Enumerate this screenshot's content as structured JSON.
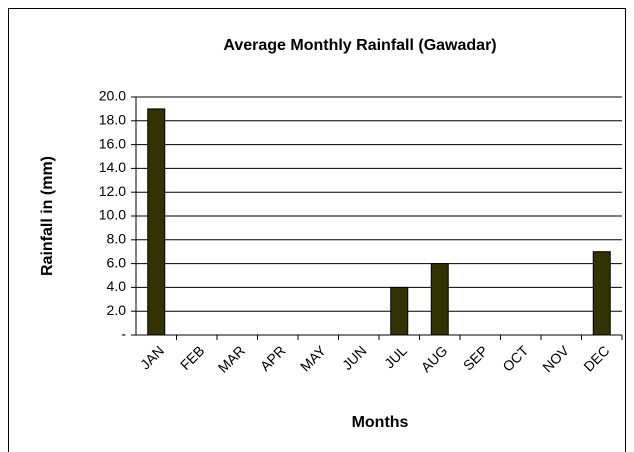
{
  "chart_data": {
    "type": "bar",
    "title": "Average Monthly Rainfall (Gawadar)",
    "x_label": "Months",
    "y_label": "Rainfall in (mm)",
    "categories": [
      "JAN",
      "FEB",
      "MAR",
      "APR",
      "MAY",
      "JUN",
      "JUL",
      "AUG",
      "SEP",
      "OCT",
      "NOV",
      "DEC"
    ],
    "values": [
      19,
      0,
      0,
      0,
      0,
      0,
      4,
      6,
      0,
      0,
      0,
      7
    ],
    "color": "#333300",
    "ylim": [
      0,
      20
    ],
    "yticks": [
      {
        "value": 0,
        "label": "-"
      },
      {
        "value": 2,
        "label": "2.0"
      },
      {
        "value": 4,
        "label": "4.0"
      },
      {
        "value": 6,
        "label": "6.0"
      },
      {
        "value": 8,
        "label": "8.0"
      },
      {
        "value": 10,
        "label": "10.0"
      },
      {
        "value": 12,
        "label": "12.0"
      },
      {
        "value": 14,
        "label": "14.0"
      },
      {
        "value": 16,
        "label": "16.0"
      },
      {
        "value": 18,
        "label": "18.0"
      },
      {
        "value": 20,
        "label": "20.0"
      }
    ],
    "grid": true
  }
}
